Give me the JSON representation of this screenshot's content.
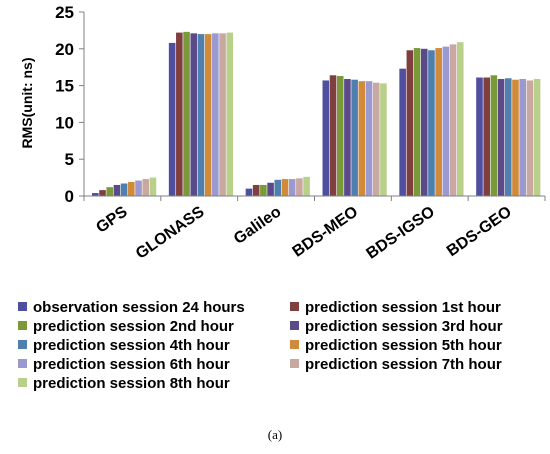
{
  "chart_data": {
    "type": "bar",
    "ylabel": "RMS(unit: ns)",
    "ylim": [
      0,
      25
    ],
    "yticks": [
      "0",
      "5",
      "10",
      "15",
      "20",
      "25"
    ],
    "grid": false,
    "legend_position": "bottom",
    "categories": [
      "GPS",
      "GLONASS",
      "Galileo",
      "BDS-MEO",
      "BDS-IGSO",
      "BDS-GEO"
    ],
    "series": [
      {
        "name": "observation session 24 hours",
        "color": "#4F4F9F",
        "values": [
          0.4,
          20.8,
          1.0,
          15.7,
          17.3,
          16.1
        ]
      },
      {
        "name": "prediction session 1st hour",
        "color": "#7F3F3F",
        "values": [
          0.8,
          22.2,
          1.5,
          16.4,
          19.8,
          16.1
        ]
      },
      {
        "name": "prediction session 2nd hour",
        "color": "#7A9A3A",
        "values": [
          1.2,
          22.3,
          1.5,
          16.3,
          20.1,
          16.4
        ]
      },
      {
        "name": "prediction session 3rd hour",
        "color": "#5A4A8A",
        "values": [
          1.5,
          22.1,
          1.8,
          15.9,
          20.0,
          15.9
        ]
      },
      {
        "name": "prediction session 4th hour",
        "color": "#4F7FAF",
        "values": [
          1.7,
          22.0,
          2.2,
          15.8,
          19.8,
          16.0
        ]
      },
      {
        "name": "prediction session 5th hour",
        "color": "#D08A3A",
        "values": [
          1.9,
          22.0,
          2.3,
          15.6,
          20.1,
          15.8
        ]
      },
      {
        "name": "prediction session 6th hour",
        "color": "#9A9AD0",
        "values": [
          2.1,
          22.1,
          2.3,
          15.6,
          20.3,
          15.9
        ]
      },
      {
        "name": "prediction session 7th hour",
        "color": "#C8A8A0",
        "values": [
          2.3,
          22.1,
          2.4,
          15.4,
          20.6,
          15.7
        ]
      },
      {
        "name": "prediction session 8th hour",
        "color": "#B8D08A",
        "values": [
          2.5,
          22.2,
          2.6,
          15.3,
          20.9,
          15.9
        ]
      }
    ]
  },
  "caption": "(a)"
}
